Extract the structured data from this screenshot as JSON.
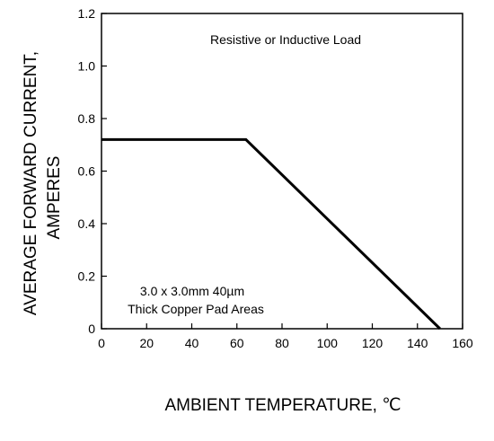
{
  "chart_data": {
    "type": "line",
    "title": "",
    "xlabel": "AMBIENT TEMPERATURE, ℃",
    "ylabel_lines": [
      "AVERAGE FORWARD CURRENT,",
      "AMPERES"
    ],
    "xlim": [
      0,
      160
    ],
    "ylim": [
      0,
      1.2
    ],
    "x_ticks": [
      0,
      20,
      40,
      60,
      80,
      100,
      120,
      140,
      160
    ],
    "y_ticks": [
      0,
      0.2,
      0.4,
      0.6,
      0.8,
      1.0,
      1.2
    ],
    "x_tick_labels": [
      "0",
      "20",
      "40",
      "60",
      "80",
      "100",
      "120",
      "140",
      "160"
    ],
    "y_tick_labels": [
      "0",
      "0.2",
      "0.4",
      "0.6",
      "0.8",
      "1.0",
      "1.2"
    ],
    "grid": false,
    "series": [
      {
        "x": [
          0,
          64,
          150
        ],
        "y": [
          0.72,
          0.72,
          0
        ]
      }
    ],
    "annotations": [
      {
        "id": "load",
        "text": "Resistive or Inductive Load"
      },
      {
        "id": "pad-line-1",
        "text": "3.0 x 3.0mm   40µm"
      },
      {
        "id": "pad-line-2",
        "text": "Thick Copper Pad Areas"
      }
    ],
    "colors": {
      "line": "#000000",
      "frame": "#000000"
    }
  }
}
